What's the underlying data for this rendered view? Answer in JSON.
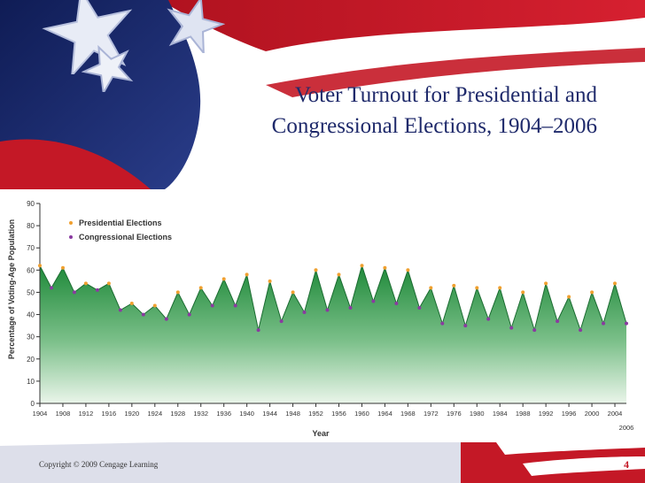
{
  "slide": {
    "title_line1": "Voter Turnout for Presidential and",
    "title_line2": "Congressional Elections, 1904–2006",
    "copyright": "Copyright © 2009 Cengage Learning",
    "page_number": "4"
  },
  "colors": {
    "title": "#1f2a6b",
    "flag_red": "#c41826",
    "flag_blue": "#1b2b6f",
    "area_top": "#1f8a3a",
    "area_bottom": "#eaf5ea",
    "presidential_marker": "#f0a030",
    "congressional_marker": "#8a3aa0"
  },
  "icons": [
    "star-icon"
  ],
  "chart_data": {
    "type": "area",
    "xlabel": "Year",
    "ylabel": "Percentage of Voting-Age Population",
    "ylim": [
      0,
      90
    ],
    "yticks": [
      0,
      10,
      20,
      30,
      40,
      50,
      60,
      70,
      80,
      90
    ],
    "xticks": [
      1904,
      1908,
      1912,
      1916,
      1920,
      1924,
      1928,
      1932,
      1936,
      1940,
      1944,
      1948,
      1952,
      1956,
      1960,
      1964,
      1968,
      1972,
      1976,
      1980,
      1984,
      1988,
      1992,
      1996,
      2000,
      2004
    ],
    "x_extra_label": "2006",
    "grid": false,
    "legend": {
      "position": "top-left",
      "entries": [
        "Presidential Elections",
        "Congressional Elections"
      ]
    },
    "x": [
      1904,
      1906,
      1908,
      1910,
      1912,
      1914,
      1916,
      1918,
      1920,
      1922,
      1924,
      1926,
      1928,
      1930,
      1932,
      1934,
      1936,
      1938,
      1940,
      1942,
      1944,
      1946,
      1948,
      1950,
      1952,
      1954,
      1956,
      1958,
      1960,
      1962,
      1964,
      1966,
      1968,
      1970,
      1972,
      1974,
      1976,
      1978,
      1980,
      1982,
      1984,
      1986,
      1988,
      1990,
      1992,
      1994,
      1996,
      1998,
      2000,
      2002,
      2004,
      2006
    ],
    "turnout": [
      62,
      52,
      61,
      50,
      54,
      51,
      54,
      42,
      45,
      40,
      44,
      38,
      50,
      40,
      52,
      44,
      56,
      44,
      58,
      33,
      55,
      37,
      50,
      41,
      60,
      42,
      58,
      43,
      62,
      46,
      61,
      45,
      60,
      43,
      52,
      36,
      53,
      35,
      52,
      38,
      52,
      34,
      50,
      33,
      54,
      37,
      48,
      33,
      50,
      36,
      54,
      36
    ],
    "series": [
      {
        "name": "Presidential Elections",
        "x": [
          1904,
          1908,
          1912,
          1916,
          1920,
          1924,
          1928,
          1932,
          1936,
          1940,
          1944,
          1948,
          1952,
          1956,
          1960,
          1964,
          1968,
          1972,
          1976,
          1980,
          1984,
          1988,
          1992,
          1996,
          2000,
          2004
        ],
        "values": [
          62,
          61,
          54,
          54,
          45,
          44,
          50,
          52,
          56,
          58,
          55,
          50,
          60,
          58,
          62,
          61,
          60,
          52,
          53,
          52,
          52,
          50,
          54,
          48,
          50,
          54
        ]
      },
      {
        "name": "Congressional Elections",
        "x": [
          1906,
          1910,
          1914,
          1918,
          1922,
          1926,
          1930,
          1934,
          1938,
          1942,
          1946,
          1950,
          1954,
          1958,
          1962,
          1966,
          1970,
          1974,
          1978,
          1982,
          1986,
          1990,
          1994,
          1998,
          2002,
          2006
        ],
        "values": [
          52,
          50,
          51,
          42,
          40,
          38,
          40,
          44,
          44,
          33,
          37,
          41,
          42,
          43,
          46,
          45,
          43,
          36,
          35,
          38,
          34,
          33,
          37,
          33,
          36,
          36
        ]
      }
    ]
  }
}
